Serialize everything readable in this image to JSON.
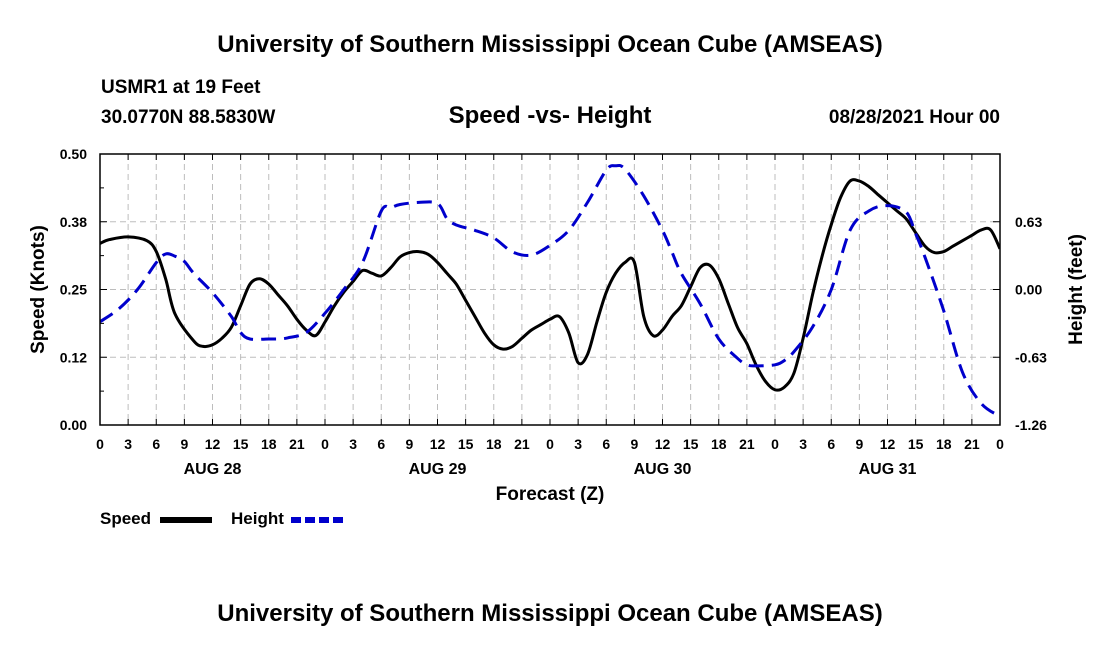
{
  "header": {
    "title": "University of Southern Mississippi Ocean Cube (AMSEAS)",
    "station": "USMR1 at 19 Feet",
    "coords": "30.0770N  88.5830W",
    "plot_title": "Speed -vs- Height",
    "datetime": "08/28/2021 Hour 00"
  },
  "footer": {
    "title": "University of Southern Mississippi Ocean Cube (AMSEAS)"
  },
  "legend": {
    "speed_label": "Speed",
    "height_label": "Height"
  },
  "chart_data": {
    "type": "line",
    "title": "Speed -vs- Height",
    "xlabel": "Forecast (Z)",
    "ylabel_left": "Speed (Knots)",
    "ylabel_right": "Height (feet)",
    "x_unit": "forecast hour",
    "xlim": [
      0,
      96
    ],
    "ylim_left": [
      0,
      0.5
    ],
    "ylim_right": [
      -1.26,
      1.26
    ],
    "y_ticks_left": [
      "0.00",
      "0.12",
      "0.25",
      "0.38",
      "0.50"
    ],
    "y_ticks_left_values": [
      0,
      0.125,
      0.25,
      0.375,
      0.5
    ],
    "y_ticks_right": [
      "-1.26",
      "-0.63",
      "0.00",
      "0.63"
    ],
    "y_ticks_right_values": [
      -1.26,
      -0.63,
      0,
      0.63
    ],
    "x_ticks": [
      0,
      3,
      6,
      9,
      12,
      15,
      18,
      21,
      24,
      27,
      30,
      33,
      36,
      39,
      42,
      45,
      48,
      51,
      54,
      57,
      60,
      63,
      66,
      69,
      72,
      75,
      78,
      81,
      84,
      87,
      90,
      93,
      96
    ],
    "x_tick_labels": [
      "0",
      "3",
      "6",
      "9",
      "12",
      "15",
      "18",
      "21",
      "0",
      "3",
      "6",
      "9",
      "12",
      "15",
      "18",
      "21",
      "0",
      "3",
      "6",
      "9",
      "12",
      "15",
      "18",
      "21",
      "0",
      "3",
      "6",
      "9",
      "12",
      "15",
      "18",
      "21",
      "0"
    ],
    "day_labels": [
      {
        "x": 12,
        "label": "AUG 28"
      },
      {
        "x": 36,
        "label": "AUG 29"
      },
      {
        "x": 60,
        "label": "AUG 30"
      },
      {
        "x": 84,
        "label": "AUG 31"
      }
    ],
    "grid": true,
    "legend_position": "bottom-left",
    "series": [
      {
        "name": "Speed",
        "axis": "left",
        "color": "#000000",
        "style": "solid",
        "x": [
          0,
          1,
          3,
          5,
          6,
          7,
          8,
          10,
          11,
          12,
          13,
          14,
          15,
          16,
          17,
          18,
          19,
          20,
          21,
          22,
          23,
          24,
          25,
          26,
          27,
          28,
          29,
          30,
          31,
          32,
          33,
          34,
          35,
          36,
          37,
          38,
          39,
          40,
          41,
          42,
          43,
          44,
          45,
          46,
          47,
          48,
          49,
          50,
          51,
          52,
          53,
          54,
          55,
          56,
          57,
          58,
          59,
          60,
          61,
          62,
          63,
          64,
          65,
          66,
          67,
          68,
          69,
          70,
          71,
          72,
          73,
          74,
          75,
          76,
          77,
          78,
          79,
          80,
          81,
          82,
          83,
          84,
          85,
          86,
          87,
          88,
          89,
          90,
          91,
          92,
          93,
          94,
          95,
          96
        ],
        "values": [
          0.335,
          0.342,
          0.347,
          0.34,
          0.32,
          0.27,
          0.205,
          0.155,
          0.145,
          0.148,
          0.16,
          0.18,
          0.22,
          0.26,
          0.27,
          0.26,
          0.24,
          0.22,
          0.195,
          0.175,
          0.165,
          0.19,
          0.22,
          0.245,
          0.265,
          0.285,
          0.28,
          0.275,
          0.29,
          0.31,
          0.318,
          0.32,
          0.315,
          0.3,
          0.28,
          0.26,
          0.23,
          0.2,
          0.17,
          0.148,
          0.14,
          0.145,
          0.16,
          0.175,
          0.185,
          0.195,
          0.2,
          0.17,
          0.115,
          0.13,
          0.19,
          0.245,
          0.28,
          0.3,
          0.3,
          0.2,
          0.165,
          0.175,
          0.2,
          0.22,
          0.255,
          0.29,
          0.295,
          0.27,
          0.225,
          0.18,
          0.15,
          0.11,
          0.08,
          0.065,
          0.07,
          0.095,
          0.16,
          0.24,
          0.31,
          0.37,
          0.42,
          0.45,
          0.45,
          0.44,
          0.425,
          0.41,
          0.395,
          0.38,
          0.355,
          0.33,
          0.318,
          0.32,
          0.33,
          0.34,
          0.35,
          0.36,
          0.36,
          0.325
        ]
      },
      {
        "name": "Height",
        "axis": "right",
        "color": "#0000cc",
        "style": "dashed",
        "x": [
          0,
          2,
          4,
          6,
          7,
          8,
          9,
          10,
          12,
          14,
          15,
          16,
          18,
          19,
          20,
          22,
          24,
          26,
          28,
          30,
          31,
          32,
          34,
          36,
          37,
          38,
          40,
          42,
          44,
          46,
          48,
          50,
          52,
          54,
          55,
          56,
          58,
          60,
          61,
          62,
          64,
          66,
          68,
          69,
          70,
          72,
          73,
          74,
          76,
          78,
          80,
          82,
          84,
          86,
          87,
          88,
          90,
          92,
          94,
          96
        ],
        "values": [
          -0.3,
          -0.18,
          0.0,
          0.25,
          0.33,
          0.31,
          0.26,
          0.15,
          -0.03,
          -0.25,
          -0.4,
          -0.46,
          -0.46,
          -0.46,
          -0.45,
          -0.4,
          -0.22,
          0.0,
          0.25,
          0.73,
          0.76,
          0.79,
          0.81,
          0.8,
          0.66,
          0.6,
          0.55,
          0.48,
          0.35,
          0.32,
          0.41,
          0.55,
          0.81,
          1.11,
          1.15,
          1.12,
          0.87,
          0.55,
          0.35,
          0.15,
          -0.13,
          -0.46,
          -0.64,
          -0.7,
          -0.71,
          -0.7,
          -0.66,
          -0.58,
          -0.35,
          0.0,
          0.55,
          0.73,
          0.78,
          0.72,
          0.52,
          0.3,
          -0.2,
          -0.77,
          -1.06,
          -1.18
        ]
      }
    ]
  }
}
